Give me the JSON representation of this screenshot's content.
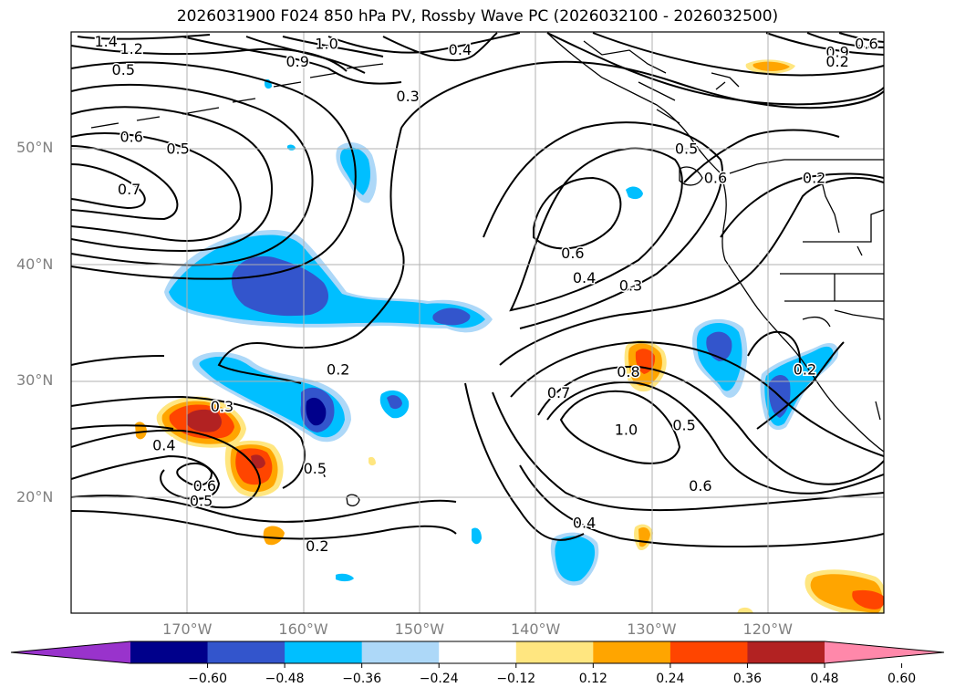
{
  "title": "2026031900 F024 850 hPa PV, Rossby Wave PC (2026032100 - 2026032500)",
  "lat_labels": [
    {
      "text": "50°N",
      "lat": 50
    },
    {
      "text": "40°N",
      "lat": 40
    },
    {
      "text": "30°N",
      "lat": 30
    },
    {
      "text": "20°N",
      "lat": 20
    }
  ],
  "lon_labels": [
    {
      "text": "170°W",
      "lon": -170
    },
    {
      "text": "160°W",
      "lon": -160
    },
    {
      "text": "150°W",
      "lon": -150
    },
    {
      "text": "140°W",
      "lon": -140
    },
    {
      "text": "130°W",
      "lon": -130
    },
    {
      "text": "120°W",
      "lon": -120
    }
  ],
  "map_extent": {
    "lon_min": -180,
    "lon_max": -110,
    "lat_min": 10,
    "lat_max": 60
  },
  "colorbar": {
    "ticks": [
      "−0.60",
      "−0.48",
      "−0.36",
      "−0.24",
      "−0.12",
      "0.12",
      "0.24",
      "0.36",
      "0.48",
      "0.60"
    ],
    "colors": [
      "#9933cc",
      "#00008b",
      "#3355cc",
      "#00bfff",
      "#add8f8",
      "#ffffff",
      "#ffe680",
      "#ffa500",
      "#ff4500",
      "#b22222",
      "#ff88aa"
    ]
  },
  "contour_labels": [
    {
      "text": "1.4",
      "lon": -177.0,
      "lat": 59.2
    },
    {
      "text": "1.2",
      "lon": -174.8,
      "lat": 58.6
    },
    {
      "text": "1.0",
      "lon": -158.0,
      "lat": 59.0
    },
    {
      "text": "0.9",
      "lon": -160.5,
      "lat": 57.5
    },
    {
      "text": "0.4",
      "lon": -146.5,
      "lat": 58.5
    },
    {
      "text": "0.5",
      "lon": -175.5,
      "lat": 56.8
    },
    {
      "text": "0.3",
      "lon": -151.0,
      "lat": 54.5
    },
    {
      "text": "0.6",
      "lon": -174.8,
      "lat": 51.0
    },
    {
      "text": "0.5",
      "lon": -170.8,
      "lat": 50.0
    },
    {
      "text": "0.7",
      "lon": -175.0,
      "lat": 46.5
    },
    {
      "text": "0.6",
      "lon": -136.8,
      "lat": 41.0
    },
    {
      "text": "0.4",
      "lon": -135.8,
      "lat": 38.9
    },
    {
      "text": "0.3",
      "lon": -131.8,
      "lat": 38.2
    },
    {
      "text": "0.5",
      "lon": -127.0,
      "lat": 50.0
    },
    {
      "text": "0.6",
      "lon": -124.5,
      "lat": 47.5
    },
    {
      "text": "0.2",
      "lon": -116.0,
      "lat": 47.5
    },
    {
      "text": "0.2",
      "lon": -157.0,
      "lat": 31.0
    },
    {
      "text": "0.3",
      "lon": -167.0,
      "lat": 27.8
    },
    {
      "text": "0.4",
      "lon": -172.0,
      "lat": 24.5
    },
    {
      "text": "0.5",
      "lon": -159.0,
      "lat": 22.5
    },
    {
      "text": "0.6",
      "lon": -168.5,
      "lat": 21.0
    },
    {
      "text": "0.5",
      "lon": -168.8,
      "lat": 19.7
    },
    {
      "text": "0.2",
      "lon": -158.8,
      "lat": 15.8
    },
    {
      "text": "0.8",
      "lon": -132.0,
      "lat": 30.8
    },
    {
      "text": "0.7",
      "lon": -138.0,
      "lat": 29.0
    },
    {
      "text": "1.0",
      "lon": -132.2,
      "lat": 25.8
    },
    {
      "text": "0.5",
      "lon": -127.2,
      "lat": 26.2
    },
    {
      "text": "0.6",
      "lon": -125.8,
      "lat": 21.0
    },
    {
      "text": "0.4",
      "lon": -135.8,
      "lat": 17.8
    },
    {
      "text": "0.2",
      "lon": -116.8,
      "lat": 31.0
    },
    {
      "text": "0.9",
      "lon": -114.0,
      "lat": 58.3
    },
    {
      "text": "0.6",
      "lon": -111.5,
      "lat": 59.0
    },
    {
      "text": "0.2",
      "lon": -114.0,
      "lat": 57.5
    }
  ]
}
